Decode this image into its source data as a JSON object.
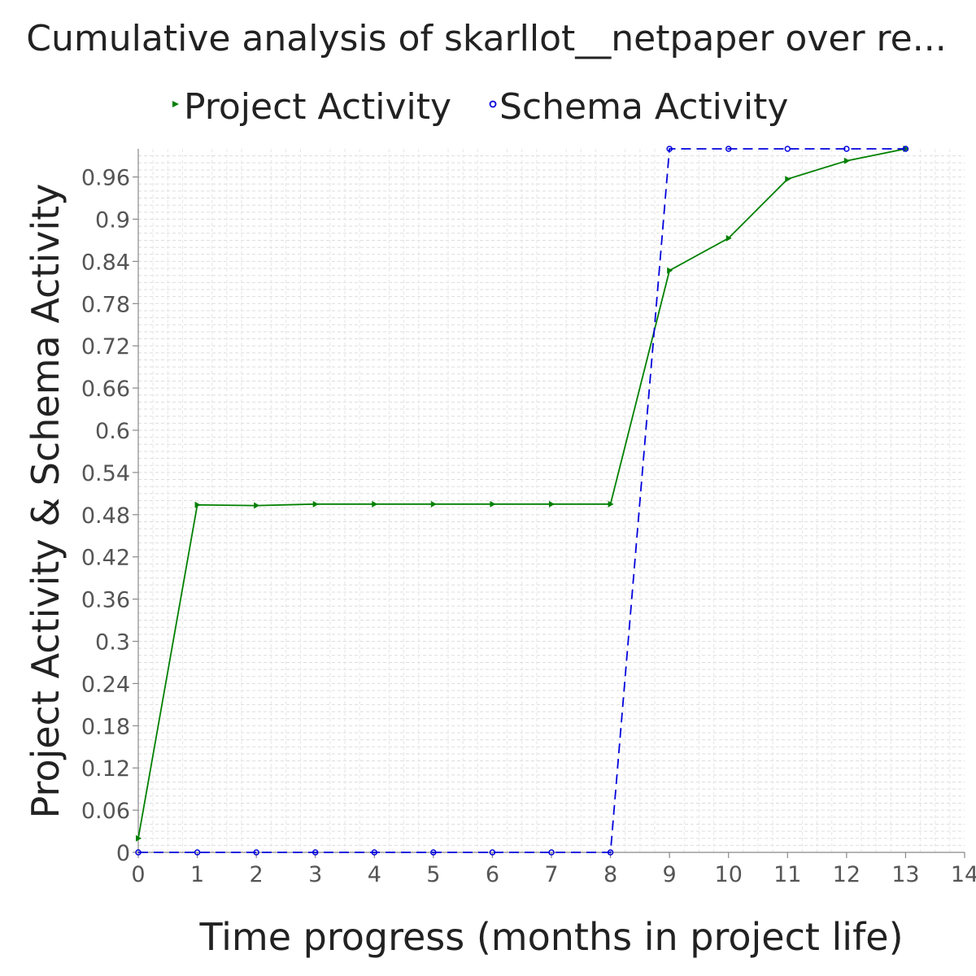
{
  "chart_data": {
    "type": "line",
    "title": "Cumulative analysis of skarllot__netpaper over re...",
    "xlabel": "Time progress (months in project life)",
    "ylabel": "Project Activity & Schema Activity",
    "xlim": [
      0,
      14
    ],
    "ylim": [
      0,
      1.0
    ],
    "x_ticks": [
      "0",
      "1",
      "2",
      "3",
      "4",
      "5",
      "6",
      "7",
      "8",
      "9",
      "10",
      "11",
      "12",
      "13",
      "14"
    ],
    "y_ticks": [
      "0",
      "0.06",
      "0.12",
      "0.18",
      "0.24",
      "0.3",
      "0.36",
      "0.42",
      "0.48",
      "0.54",
      "0.6",
      "0.66",
      "0.72",
      "0.78",
      "0.84",
      "0.9",
      "0.96"
    ],
    "y_tick_values": [
      0,
      0.06,
      0.12,
      0.18,
      0.24,
      0.3,
      0.36,
      0.42,
      0.48,
      0.54,
      0.6,
      0.66,
      0.72,
      0.78,
      0.84,
      0.9,
      0.96
    ],
    "grid": true,
    "legend_position": "top",
    "series": [
      {
        "name": "Project Activity",
        "color": "#008000",
        "line_style": "solid",
        "marker": "triangle-right",
        "x": [
          0,
          1,
          2,
          3,
          4,
          5,
          6,
          7,
          8,
          9,
          10,
          11,
          12,
          13
        ],
        "y": [
          0.02,
          0.494,
          0.493,
          0.495,
          0.495,
          0.495,
          0.495,
          0.495,
          0.495,
          0.827,
          0.873,
          0.957,
          0.983,
          1.0
        ]
      },
      {
        "name": "Schema Activity",
        "color": "#0000dd",
        "line_style": "dashed",
        "marker": "circle",
        "x": [
          0,
          1,
          2,
          3,
          4,
          5,
          6,
          7,
          8,
          9,
          10,
          11,
          12,
          13
        ],
        "y": [
          0,
          0,
          0,
          0,
          0,
          0,
          0,
          0,
          0,
          1.0,
          1.0,
          1.0,
          1.0,
          1.0
        ]
      }
    ]
  }
}
